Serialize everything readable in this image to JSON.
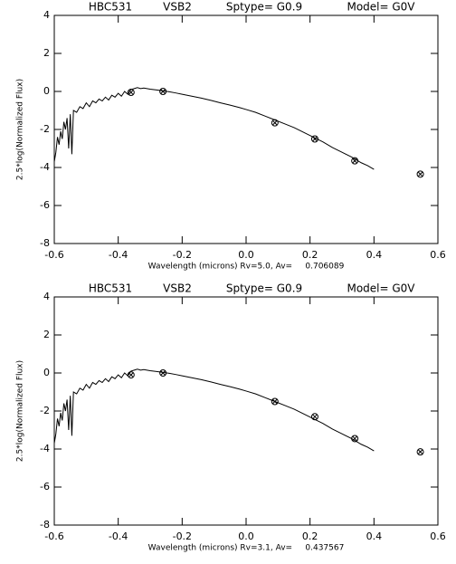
{
  "chart_data": [
    {
      "type": "line",
      "title_parts": [
        "HBC531",
        "VSB2",
        "Sptype= G0.9",
        "Model= G0V"
      ],
      "x_label": "Wavelength (microns) Rv=5.0, Av=     0.706089",
      "y_label": "2.5*log(Normalized Flux)",
      "xlim": [
        -0.6,
        0.6
      ],
      "ylim": [
        -8,
        4
      ],
      "xticks": [
        -0.6,
        -0.4,
        -0.2,
        {
          "value": 0,
          "label": "0.0"
        },
        0.2,
        0.4,
        0.6
      ],
      "yticks": [
        -8,
        -6,
        -4,
        -2,
        0,
        2,
        4
      ],
      "series": [
        {
          "style": "line",
          "color": "#000000",
          "x": [
            -0.6,
            -0.595,
            -0.59,
            -0.585,
            -0.58,
            -0.575,
            -0.57,
            -0.565,
            -0.56,
            -0.555,
            -0.55,
            -0.545,
            -0.54,
            -0.53,
            -0.52,
            -0.51,
            -0.5,
            -0.49,
            -0.48,
            -0.47,
            -0.46,
            -0.45,
            -0.44,
            -0.43,
            -0.42,
            -0.41,
            -0.4,
            -0.39,
            -0.38,
            -0.37,
            -0.36,
            -0.35,
            -0.34,
            -0.33,
            -0.32,
            -0.3,
            -0.28,
            -0.26,
            -0.24,
            -0.22,
            -0.2,
            -0.17,
            -0.14,
            -0.11,
            -0.08,
            -0.05,
            -0.02,
            0.0,
            0.03,
            0.06,
            0.09,
            0.12,
            0.15,
            0.18,
            0.21,
            0.24,
            0.27,
            0.3,
            0.33,
            0.36,
            0.38,
            0.4
          ],
          "values": [
            -3.7,
            -3.2,
            -2.4,
            -2.8,
            -2.1,
            -2.5,
            -1.6,
            -2.0,
            -1.4,
            -3.0,
            -1.2,
            -3.3,
            -1.0,
            -1.1,
            -0.8,
            -0.9,
            -0.6,
            -0.8,
            -0.5,
            -0.6,
            -0.4,
            -0.5,
            -0.3,
            -0.45,
            -0.2,
            -0.3,
            -0.1,
            -0.25,
            0.0,
            -0.15,
            0.1,
            0.15,
            0.2,
            0.15,
            0.18,
            0.12,
            0.08,
            0.03,
            -0.02,
            -0.08,
            -0.15,
            -0.25,
            -0.35,
            -0.47,
            -0.6,
            -0.72,
            -0.85,
            -0.95,
            -1.1,
            -1.3,
            -1.5,
            -1.7,
            -1.9,
            -2.15,
            -2.4,
            -2.65,
            -2.95,
            -3.2,
            -3.45,
            -3.75,
            -3.9,
            -4.1
          ]
        },
        {
          "style": "marker",
          "color": "#000000",
          "x": [
            -0.36,
            -0.26,
            0.09,
            0.215,
            0.34,
            0.545
          ],
          "values": [
            -0.05,
            0.0,
            -1.65,
            -2.5,
            -3.65,
            -4.35
          ]
        }
      ]
    },
    {
      "type": "line",
      "title_parts": [
        "HBC531",
        "VSB2",
        "Sptype= G0.9",
        "Model= G0V"
      ],
      "x_label": "Wavelength (microns) Rv=3.1, Av=     0.437567",
      "y_label": "2.5*log(Normalized Flux)",
      "xlim": [
        -0.6,
        0.6
      ],
      "ylim": [
        -8,
        4
      ],
      "xticks": [
        -0.6,
        -0.4,
        -0.2,
        {
          "value": 0,
          "label": "0.0"
        },
        0.2,
        0.4,
        0.6
      ],
      "yticks": [
        -8,
        -6,
        -4,
        -2,
        0,
        2,
        4
      ],
      "series": [
        {
          "style": "line",
          "color": "#000000",
          "x": [
            -0.6,
            -0.595,
            -0.59,
            -0.585,
            -0.58,
            -0.575,
            -0.57,
            -0.565,
            -0.56,
            -0.555,
            -0.55,
            -0.545,
            -0.54,
            -0.53,
            -0.52,
            -0.51,
            -0.5,
            -0.49,
            -0.48,
            -0.47,
            -0.46,
            -0.45,
            -0.44,
            -0.43,
            -0.42,
            -0.41,
            -0.4,
            -0.39,
            -0.38,
            -0.37,
            -0.36,
            -0.35,
            -0.34,
            -0.33,
            -0.32,
            -0.3,
            -0.28,
            -0.26,
            -0.24,
            -0.22,
            -0.2,
            -0.17,
            -0.14,
            -0.11,
            -0.08,
            -0.05,
            -0.02,
            0.0,
            0.03,
            0.06,
            0.09,
            0.12,
            0.15,
            0.18,
            0.21,
            0.24,
            0.27,
            0.3,
            0.33,
            0.36,
            0.38,
            0.4
          ],
          "values": [
            -3.7,
            -3.2,
            -2.4,
            -2.8,
            -2.1,
            -2.5,
            -1.6,
            -2.0,
            -1.4,
            -3.0,
            -1.2,
            -3.3,
            -1.0,
            -1.1,
            -0.8,
            -0.9,
            -0.6,
            -0.8,
            -0.5,
            -0.6,
            -0.4,
            -0.5,
            -0.3,
            -0.45,
            -0.2,
            -0.3,
            -0.1,
            -0.25,
            0.0,
            -0.15,
            0.1,
            0.15,
            0.2,
            0.15,
            0.18,
            0.12,
            0.08,
            0.03,
            -0.02,
            -0.08,
            -0.15,
            -0.25,
            -0.35,
            -0.47,
            -0.6,
            -0.72,
            -0.85,
            -0.95,
            -1.1,
            -1.3,
            -1.5,
            -1.7,
            -1.9,
            -2.15,
            -2.4,
            -2.65,
            -2.95,
            -3.2,
            -3.45,
            -3.75,
            -3.9,
            -4.1
          ]
        },
        {
          "style": "marker",
          "color": "#000000",
          "x": [
            -0.36,
            -0.26,
            0.09,
            0.215,
            0.34,
            0.545
          ],
          "values": [
            -0.1,
            0.0,
            -1.5,
            -2.3,
            -3.45,
            -4.15
          ]
        }
      ]
    }
  ]
}
